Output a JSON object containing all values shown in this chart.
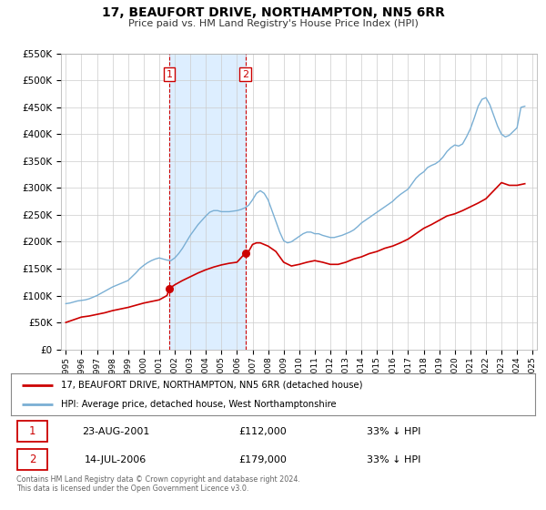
{
  "title": "17, BEAUFORT DRIVE, NORTHAMPTON, NN5 6RR",
  "subtitle": "Price paid vs. HM Land Registry's House Price Index (HPI)",
  "hpi_color": "#7aafd4",
  "price_color": "#cc0000",
  "bg_color": "#ffffff",
  "grid_color": "#cccccc",
  "shade_color": "#ddeeff",
  "ylim": [
    0,
    550000
  ],
  "yticks": [
    0,
    50000,
    100000,
    150000,
    200000,
    250000,
    300000,
    350000,
    400000,
    450000,
    500000,
    550000
  ],
  "xlim_start": 1994.7,
  "xlim_end": 2025.3,
  "transaction1_x": 2001.647,
  "transaction1_y": 112000,
  "transaction2_x": 2006.536,
  "transaction2_y": 179000,
  "legend_line1": "17, BEAUFORT DRIVE, NORTHAMPTON, NN5 6RR (detached house)",
  "legend_line2": "HPI: Average price, detached house, West Northamptonshire",
  "table_row1_num": "1",
  "table_row1_date": "23-AUG-2001",
  "table_row1_price": "£112,000",
  "table_row1_hpi": "33% ↓ HPI",
  "table_row2_num": "2",
  "table_row2_date": "14-JUL-2006",
  "table_row2_price": "£179,000",
  "table_row2_hpi": "33% ↓ HPI",
  "footnote": "Contains HM Land Registry data © Crown copyright and database right 2024.\nThis data is licensed under the Open Government Licence v3.0.",
  "hpi_data_x": [
    1995.0,
    1995.25,
    1995.5,
    1995.75,
    1996.0,
    1996.25,
    1996.5,
    1996.75,
    1997.0,
    1997.25,
    1997.5,
    1997.75,
    1998.0,
    1998.25,
    1998.5,
    1998.75,
    1999.0,
    1999.25,
    1999.5,
    1999.75,
    2000.0,
    2000.25,
    2000.5,
    2000.75,
    2001.0,
    2001.25,
    2001.5,
    2001.75,
    2002.0,
    2002.25,
    2002.5,
    2002.75,
    2003.0,
    2003.25,
    2003.5,
    2003.75,
    2004.0,
    2004.25,
    2004.5,
    2004.75,
    2005.0,
    2005.25,
    2005.5,
    2005.75,
    2006.0,
    2006.25,
    2006.5,
    2006.75,
    2007.0,
    2007.25,
    2007.5,
    2007.75,
    2008.0,
    2008.25,
    2008.5,
    2008.75,
    2009.0,
    2009.25,
    2009.5,
    2009.75,
    2010.0,
    2010.25,
    2010.5,
    2010.75,
    2011.0,
    2011.25,
    2011.5,
    2011.75,
    2012.0,
    2012.25,
    2012.5,
    2012.75,
    2013.0,
    2013.25,
    2013.5,
    2013.75,
    2014.0,
    2014.25,
    2014.5,
    2014.75,
    2015.0,
    2015.25,
    2015.5,
    2015.75,
    2016.0,
    2016.25,
    2016.5,
    2016.75,
    2017.0,
    2017.25,
    2017.5,
    2017.75,
    2018.0,
    2018.25,
    2018.5,
    2018.75,
    2019.0,
    2019.25,
    2019.5,
    2019.75,
    2020.0,
    2020.25,
    2020.5,
    2020.75,
    2021.0,
    2021.25,
    2021.5,
    2021.75,
    2022.0,
    2022.25,
    2022.5,
    2022.75,
    2023.0,
    2023.25,
    2023.5,
    2023.75,
    2024.0,
    2024.25,
    2024.5
  ],
  "hpi_data_y": [
    85000,
    86000,
    88000,
    90000,
    91000,
    92000,
    94000,
    97000,
    100000,
    104000,
    108000,
    112000,
    116000,
    119000,
    122000,
    125000,
    128000,
    135000,
    142000,
    150000,
    156000,
    161000,
    165000,
    168000,
    170000,
    168000,
    166000,
    165000,
    170000,
    178000,
    188000,
    200000,
    212000,
    222000,
    232000,
    240000,
    248000,
    255000,
    258000,
    258000,
    256000,
    256000,
    256000,
    257000,
    258000,
    260000,
    263000,
    268000,
    278000,
    290000,
    295000,
    290000,
    278000,
    258000,
    238000,
    218000,
    202000,
    198000,
    200000,
    205000,
    210000,
    215000,
    218000,
    218000,
    215000,
    215000,
    212000,
    210000,
    208000,
    208000,
    210000,
    212000,
    215000,
    218000,
    222000,
    228000,
    235000,
    240000,
    245000,
    250000,
    255000,
    260000,
    265000,
    270000,
    275000,
    282000,
    288000,
    293000,
    298000,
    308000,
    318000,
    325000,
    330000,
    338000,
    342000,
    345000,
    350000,
    358000,
    368000,
    375000,
    380000,
    378000,
    382000,
    395000,
    410000,
    430000,
    452000,
    465000,
    468000,
    455000,
    435000,
    415000,
    400000,
    395000,
    398000,
    405000,
    412000,
    450000,
    452000
  ],
  "price_data_x": [
    1995.0,
    1995.5,
    1996.0,
    1996.5,
    1997.0,
    1997.5,
    1998.0,
    1998.5,
    1999.0,
    1999.5,
    2000.0,
    2000.5,
    2001.0,
    2001.5,
    2001.647,
    2001.75,
    2002.0,
    2002.5,
    2003.0,
    2003.5,
    2004.0,
    2004.5,
    2005.0,
    2005.5,
    2006.0,
    2006.536,
    2006.75,
    2007.0,
    2007.25,
    2007.5,
    2008.0,
    2008.5,
    2009.0,
    2009.5,
    2010.0,
    2010.5,
    2011.0,
    2011.5,
    2012.0,
    2012.5,
    2013.0,
    2013.5,
    2014.0,
    2014.5,
    2015.0,
    2015.5,
    2016.0,
    2016.5,
    2017.0,
    2017.5,
    2018.0,
    2018.5,
    2019.0,
    2019.5,
    2020.0,
    2020.5,
    2021.0,
    2021.5,
    2022.0,
    2022.5,
    2023.0,
    2023.5,
    2024.0,
    2024.5
  ],
  "price_data_y": [
    50000,
    55000,
    60000,
    62000,
    65000,
    68000,
    72000,
    75000,
    78000,
    82000,
    86000,
    89000,
    92000,
    100000,
    112000,
    115000,
    120000,
    128000,
    135000,
    142000,
    148000,
    153000,
    157000,
    160000,
    162000,
    179000,
    182000,
    195000,
    198000,
    198000,
    192000,
    182000,
    162000,
    155000,
    158000,
    162000,
    165000,
    162000,
    158000,
    158000,
    162000,
    168000,
    172000,
    178000,
    182000,
    188000,
    192000,
    198000,
    205000,
    215000,
    225000,
    232000,
    240000,
    248000,
    252000,
    258000,
    265000,
    272000,
    280000,
    295000,
    310000,
    305000,
    305000,
    308000
  ]
}
